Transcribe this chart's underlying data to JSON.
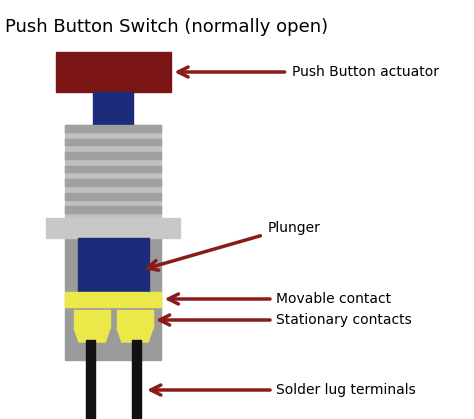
{
  "title": "Push Button Switch (normally open)",
  "title_fontsize": 13,
  "background_color": "#ffffff",
  "colors": {
    "dark_red": "#7B1515",
    "dark_blue": "#1C2B7A",
    "gray_body": "#9B9B9B",
    "gray_light": "#C0C0C0",
    "gray_nut": "#C8C8C8",
    "yellow": "#EDE84A",
    "black": "#111111",
    "arrow_red": "#8B1A1A",
    "thread_dark": "#A0A0A0",
    "thread_light": "#D2D2D2"
  },
  "labels": {
    "actuator": "Push Button actuator",
    "plunger": "Plunger",
    "movable": "Movable contact",
    "stationary": "Stationary contacts",
    "solder": "Solder lug terminals"
  },
  "figsize": [
    4.74,
    4.19
  ],
  "dpi": 100
}
